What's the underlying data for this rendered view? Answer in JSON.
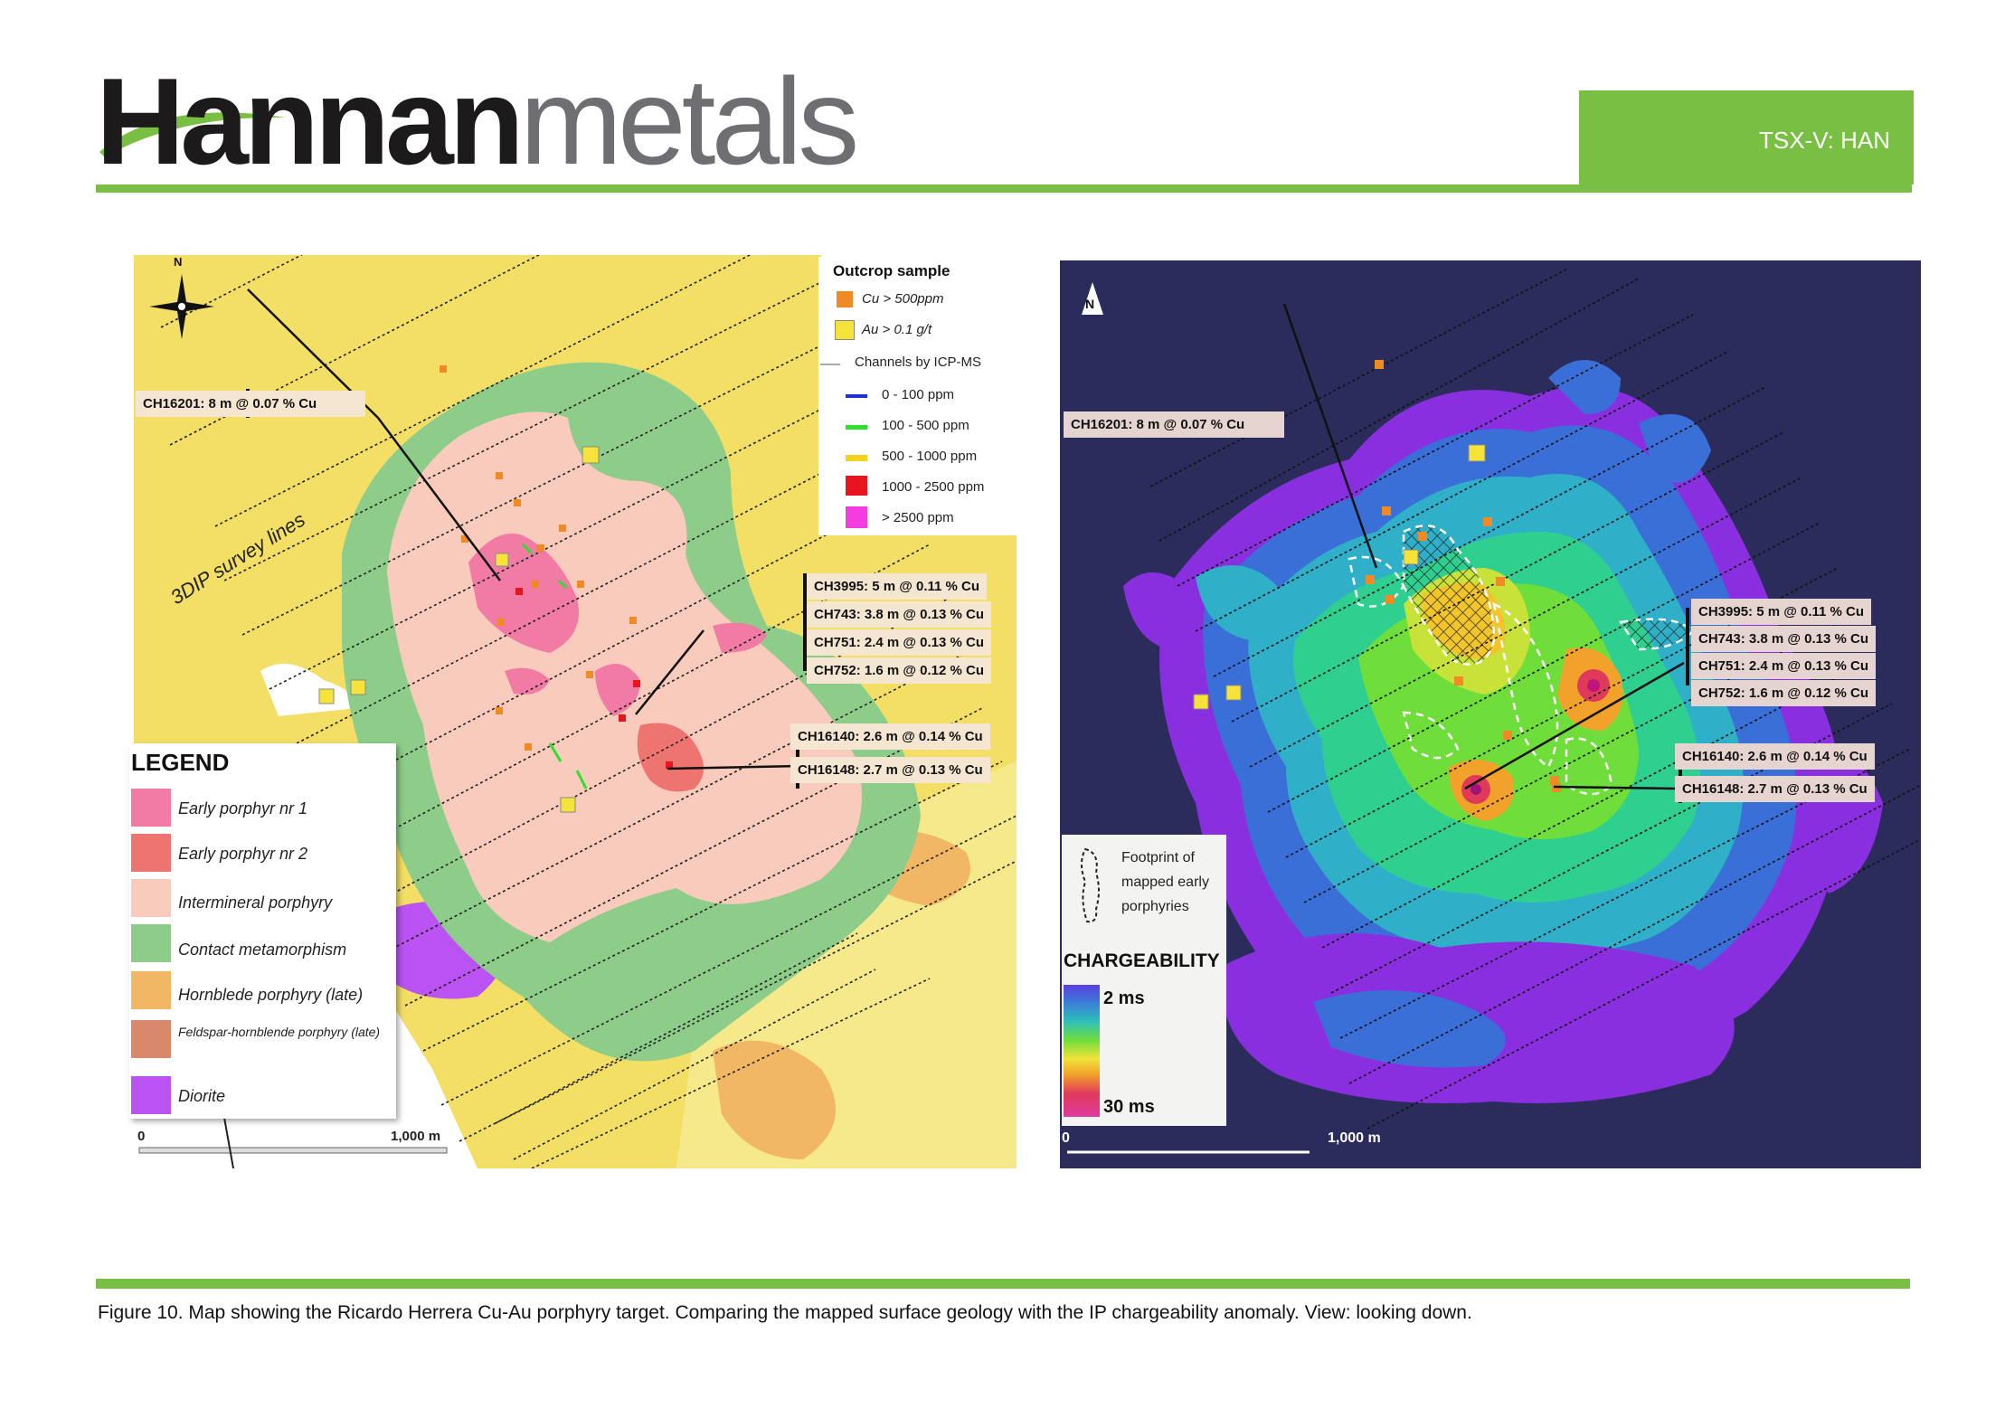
{
  "header": {
    "brand_bold": "Hannan",
    "brand_light": "metals",
    "ticker": "TSX-V: HAN"
  },
  "colors": {
    "accent_green": "#78bf43",
    "chargeability_bg": "#2b2c5c"
  },
  "left_map": {
    "north": "N",
    "survey_lines_label": "3DIP survey lines",
    "callouts": {
      "ch16201": "CH16201: 8 m @ 0.07 % Cu",
      "ch3995": "CH3995: 5 m @ 0.11 % Cu",
      "ch743": "CH743: 3.8 m @ 0.13 % Cu",
      "ch751": "CH751: 2.4 m @ 0.13 % Cu",
      "ch752": "CH752: 1.6 m @ 0.12 % Cu",
      "ch16140": "CH16140: 2.6 m @ 0.14 % Cu",
      "ch16148": "CH16148: 2.7 m @ 0.13 % Cu"
    },
    "outcrop_legend": {
      "title": "Outcrop sample",
      "cu": "Cu > 500ppm",
      "au": "Au > 0.1 g/t",
      "channels": "Channels by ICP-MS",
      "ranges": [
        {
          "label": "0 - 100 ppm",
          "color": "#1f2fd6"
        },
        {
          "label": "100 - 500 ppm",
          "color": "#2ee02e"
        },
        {
          "label": "500 - 1000 ppm",
          "color": "#f2d21a"
        },
        {
          "label": "1000 - 2500 ppm",
          "color": "#e8141e"
        },
        {
          "label": "> 2500 ppm",
          "color": "#f23ee0"
        }
      ]
    },
    "legend": {
      "title": "LEGEND",
      "items": [
        {
          "label": "Early porphyr nr 1",
          "color": "#f27ba5"
        },
        {
          "label": "Early porphyr nr 2",
          "color": "#ee7470"
        },
        {
          "label": "Intermineral porphyry",
          "color": "#f8cbbc"
        },
        {
          "label": "Contact metamorphism",
          "color": "#8dcd89"
        },
        {
          "label": "Hornblede porphyry (late)",
          "color": "#f2b764"
        },
        {
          "label": "Feldspar-hornblende porphyry (late)",
          "color": "#d9886c"
        },
        {
          "label": "Diorite",
          "color": "#bb53f3"
        }
      ]
    },
    "scale": {
      "start": "0",
      "end": "1,000 m"
    }
  },
  "right_map": {
    "north": "N",
    "callouts": {
      "ch16201": "CH16201: 8 m @ 0.07 % Cu",
      "ch3995": "CH3995: 5 m @ 0.11 % Cu",
      "ch743": "CH743: 3.8 m @ 0.13 % Cu",
      "ch751": "CH751: 2.4 m @ 0.13 % Cu",
      "ch752": "CH752: 1.6 m @ 0.12 % Cu",
      "ch16140": "CH16140: 2.6 m @ 0.14 % Cu",
      "ch16148": "CH16148: 2.7 m @ 0.13 % Cu"
    },
    "footprint_label": "Footprint of mapped early porphyries",
    "chargeability": {
      "title": "CHARGEABILITY",
      "min": "2 ms",
      "max": "30 ms"
    },
    "scale": {
      "start": "0",
      "end": "1,000 m"
    }
  },
  "caption": "Figure 10.  Map showing the Ricardo Herrera Cu-Au porphyry target. Comparing the mapped surface geology with the IP chargeability anomaly.  View: looking down."
}
